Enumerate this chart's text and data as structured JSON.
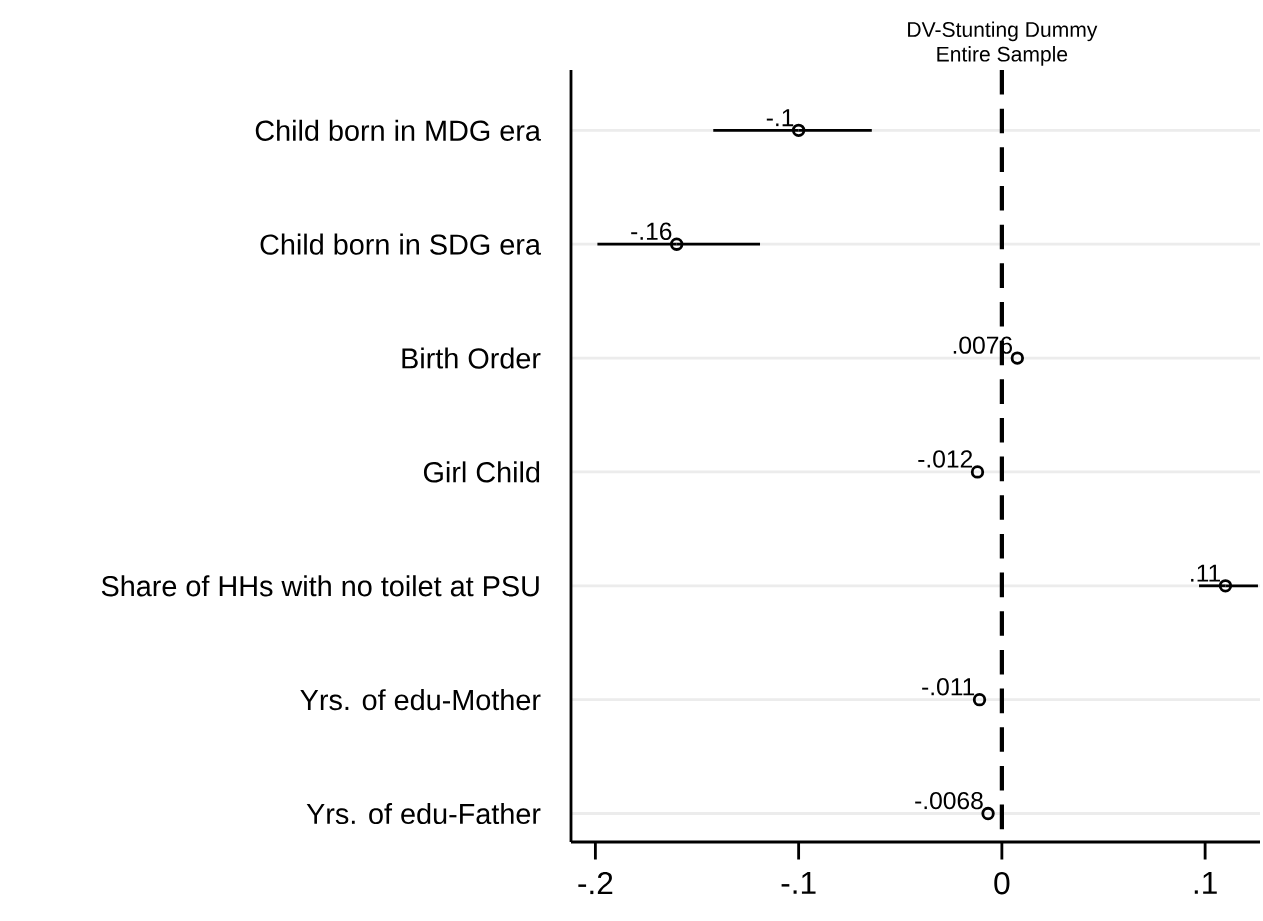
{
  "chart_data": {
    "type": "scatter",
    "orientation": "horizontal",
    "title": "DV-Stunting Dummy",
    "subtitle": "Entire Sample",
    "categories": [
      "Child born in MDG era",
      "Child born in SDG era",
      "Birth Order",
      "Girl Child",
      "Share of HHs with no toilet at PSU",
      "Yrs. of edu-Mother",
      "Yrs. of edu-Father"
    ],
    "values": [
      -0.1,
      -0.16,
      0.0076,
      -0.012,
      0.11,
      -0.011,
      -0.0068
    ],
    "value_labels": [
      "-.1",
      "-.16",
      ".0076",
      "-.012",
      ".11",
      "-.011",
      "-.0068"
    ],
    "errors": [
      [
        -0.142,
        -0.064
      ],
      [
        -0.199,
        -0.119
      ],
      null,
      null,
      [
        0.097,
        0.126
      ],
      null,
      null
    ],
    "color": "#000000",
    "xlim": [
      -0.212,
      0.127
    ],
    "xticks": [
      {
        "value": -0.2,
        "label": "-.2"
      },
      {
        "value": -0.1,
        "label": "-.1"
      },
      0,
      {
        "value": 0.1,
        "label": ".1"
      }
    ],
    "ref_lines": [
      {
        "axis": "x",
        "value": 0,
        "line_style": "dashed",
        "color": "#000000"
      }
    ],
    "grid": "y",
    "marker": "circle"
  }
}
